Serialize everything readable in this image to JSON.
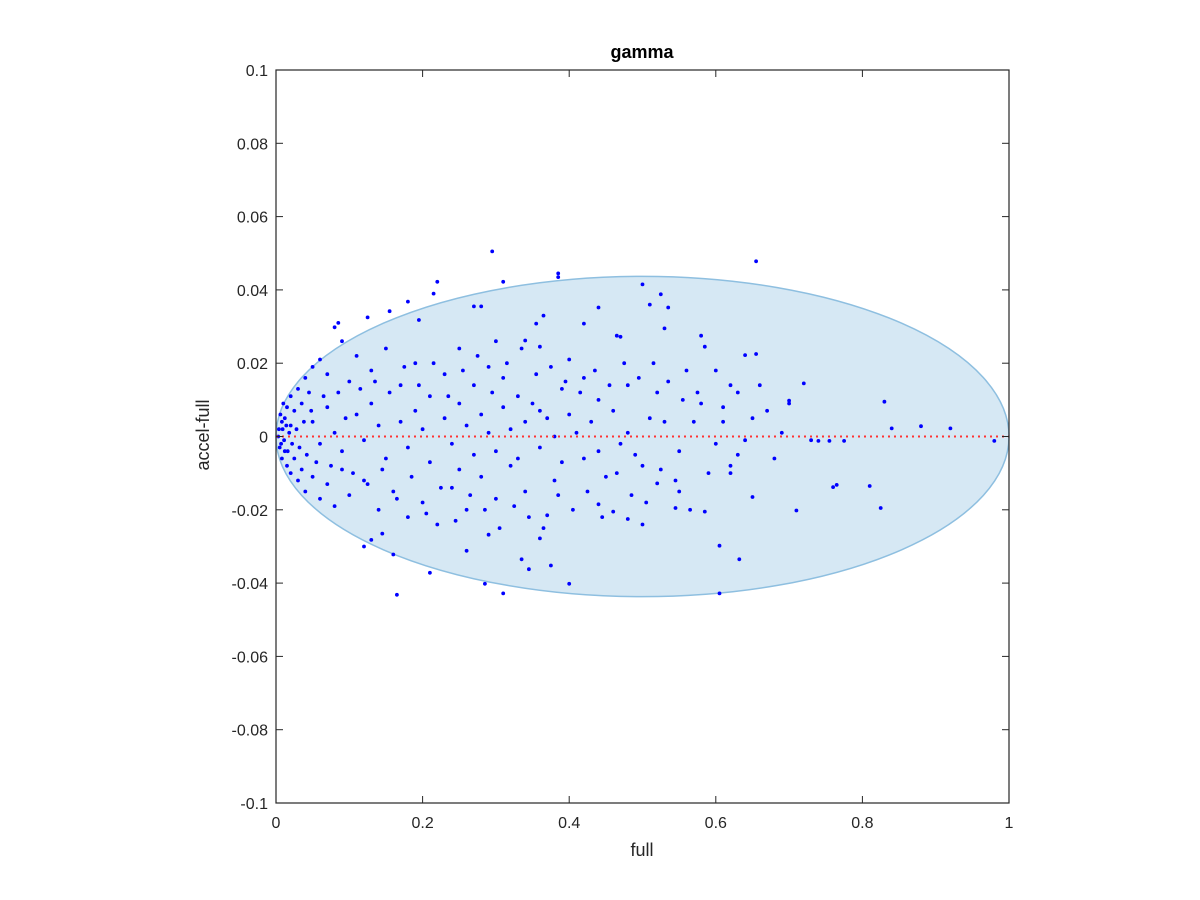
{
  "chart_data": {
    "type": "scatter",
    "title": "gamma",
    "xlabel": "full",
    "ylabel": "accel-full",
    "xlim": [
      0,
      1
    ],
    "ylim": [
      -0.1,
      0.1
    ],
    "xticks": [
      0,
      0.2,
      0.4,
      0.6,
      0.8,
      1
    ],
    "xtick_labels": [
      "0",
      "0.2",
      "0.4",
      "0.6",
      "0.8",
      "1"
    ],
    "yticks": [
      -0.1,
      -0.08,
      -0.06,
      -0.04,
      -0.02,
      0,
      0.02,
      0.04,
      0.06,
      0.08,
      0.1
    ],
    "ytick_labels": [
      "-0.1",
      "-0.08",
      "-0.06",
      "-0.04",
      "-0.02",
      "0",
      "0.02",
      "0.04",
      "0.06",
      "0.08",
      "0.1"
    ],
    "grid": false,
    "colors": {
      "points": "#0000ff",
      "ellipse_fill": "#d6e8f4",
      "ellipse_stroke": "#8ebfe0",
      "zero_line": "#ff3333",
      "axis": "#262626"
    },
    "ellipse": {
      "cx": 0.5,
      "cy": 0.0,
      "rx": 0.5,
      "ry": 0.0437
    },
    "reference_line": {
      "y": 0,
      "x": [
        0,
        1
      ],
      "style": "dotted"
    },
    "points": [
      [
        0.295,
        0.0505
      ],
      [
        0.655,
        0.0478
      ],
      [
        0.385,
        0.0445
      ],
      [
        0.385,
        0.0435
      ],
      [
        0.31,
        0.0422
      ],
      [
        0.22,
        0.0422
      ],
      [
        0.5,
        0.0415
      ],
      [
        0.215,
        0.039
      ],
      [
        0.525,
        0.0388
      ],
      [
        0.535,
        0.0352
      ],
      [
        0.18,
        0.0368
      ],
      [
        0.28,
        0.0355
      ],
      [
        0.27,
        0.0355
      ],
      [
        0.44,
        0.0352
      ],
      [
        0.51,
        0.036
      ],
      [
        0.085,
        0.031
      ],
      [
        0.08,
        0.0298
      ],
      [
        0.155,
        0.0342
      ],
      [
        0.195,
        0.0318
      ],
      [
        0.365,
        0.033
      ],
      [
        0.42,
        0.0308
      ],
      [
        0.355,
        0.0308
      ],
      [
        0.53,
        0.0295
      ],
      [
        0.125,
        0.0325
      ],
      [
        0.64,
        0.0222
      ],
      [
        0.655,
        0.0225
      ],
      [
        0.3,
        0.026
      ],
      [
        0.465,
        0.0275
      ],
      [
        0.47,
        0.0272
      ],
      [
        0.58,
        0.0275
      ],
      [
        0.36,
        0.0245
      ],
      [
        0.34,
        0.0262
      ],
      [
        0.25,
        0.024
      ],
      [
        0.585,
        0.0245
      ],
      [
        0.72,
        0.0145
      ],
      [
        0.7,
        0.0098
      ],
      [
        0.7,
        0.009
      ],
      [
        0.83,
        0.0095
      ],
      [
        0.84,
        0.0022
      ],
      [
        0.88,
        0.0028
      ],
      [
        0.92,
        0.0022
      ],
      [
        0.98,
        -0.0012
      ],
      [
        0.74,
        -0.0012
      ],
      [
        0.755,
        -0.0012
      ],
      [
        0.775,
        -0.0012
      ],
      [
        0.73,
        -0.001
      ],
      [
        0.765,
        -0.0132
      ],
      [
        0.76,
        -0.0138
      ],
      [
        0.81,
        -0.0135
      ],
      [
        0.825,
        -0.0195
      ],
      [
        0.71,
        -0.0202
      ],
      [
        0.65,
        -0.0165
      ],
      [
        0.62,
        -0.01
      ],
      [
        0.632,
        -0.0335
      ],
      [
        0.605,
        -0.0298
      ],
      [
        0.605,
        -0.0428
      ],
      [
        0.585,
        -0.0205
      ],
      [
        0.545,
        -0.0195
      ],
      [
        0.52,
        -0.0128
      ],
      [
        0.5,
        -0.024
      ],
      [
        0.48,
        -0.0225
      ],
      [
        0.44,
        -0.0185
      ],
      [
        0.4,
        -0.0402
      ],
      [
        0.375,
        -0.0352
      ],
      [
        0.345,
        -0.0362
      ],
      [
        0.31,
        -0.0428
      ],
      [
        0.285,
        -0.0402
      ],
      [
        0.26,
        -0.0312
      ],
      [
        0.21,
        -0.0372
      ],
      [
        0.165,
        -0.0432
      ],
      [
        0.16,
        -0.0322
      ],
      [
        0.13,
        -0.0282
      ],
      [
        0.12,
        -0.03
      ],
      [
        0.145,
        -0.0265
      ],
      [
        0.36,
        -0.0278
      ],
      [
        0.335,
        -0.0335
      ],
      [
        0.29,
        -0.0268
      ],
      [
        0.37,
        -0.0215
      ],
      [
        0.46,
        -0.0205
      ],
      [
        0.55,
        -0.015
      ],
      [
        0.62,
        -0.008
      ],
      [
        0.68,
        -0.006
      ],
      [
        0.6,
        -0.002
      ],
      [
        0.57,
        0.004
      ],
      [
        0.63,
        0.012
      ],
      [
        0.66,
        0.014
      ],
      [
        0.62,
        0.014
      ],
      [
        0.6,
        0.018
      ],
      [
        0.56,
        0.018
      ],
      [
        0.52,
        0.012
      ],
      [
        0.48,
        0.014
      ],
      [
        0.44,
        0.01
      ],
      [
        0.42,
        0.016
      ],
      [
        0.4,
        0.021
      ],
      [
        0.39,
        0.013
      ],
      [
        0.36,
        0.007
      ],
      [
        0.33,
        0.011
      ],
      [
        0.31,
        0.016
      ],
      [
        0.29,
        0.019
      ],
      [
        0.27,
        0.014
      ],
      [
        0.25,
        0.009
      ],
      [
        0.23,
        0.017
      ],
      [
        0.21,
        0.011
      ],
      [
        0.19,
        0.02
      ],
      [
        0.17,
        0.014
      ],
      [
        0.15,
        0.024
      ],
      [
        0.13,
        0.018
      ],
      [
        0.11,
        0.022
      ],
      [
        0.1,
        0.015
      ],
      [
        0.09,
        0.026
      ],
      [
        0.07,
        0.017
      ],
      [
        0.06,
        0.021
      ],
      [
        0.05,
        0.019
      ],
      [
        0.045,
        0.012
      ],
      [
        0.04,
        0.016
      ],
      [
        0.035,
        0.009
      ],
      [
        0.03,
        0.013
      ],
      [
        0.025,
        0.007
      ],
      [
        0.02,
        0.011
      ],
      [
        0.015,
        0.008
      ],
      [
        0.012,
        0.005
      ],
      [
        0.01,
        0.009
      ],
      [
        0.008,
        0.004
      ],
      [
        0.006,
        0.006
      ],
      [
        0.004,
        0.002
      ],
      [
        0.003,
        0.0
      ],
      [
        0.005,
        -0.003
      ],
      [
        0.008,
        -0.006
      ],
      [
        0.012,
        -0.004
      ],
      [
        0.015,
        -0.008
      ],
      [
        0.02,
        -0.01
      ],
      [
        0.025,
        -0.006
      ],
      [
        0.03,
        -0.012
      ],
      [
        0.035,
        -0.009
      ],
      [
        0.04,
        -0.015
      ],
      [
        0.05,
        -0.011
      ],
      [
        0.06,
        -0.017
      ],
      [
        0.07,
        -0.013
      ],
      [
        0.08,
        -0.019
      ],
      [
        0.09,
        -0.009
      ],
      [
        0.1,
        -0.016
      ],
      [
        0.12,
        -0.012
      ],
      [
        0.14,
        -0.02
      ],
      [
        0.16,
        -0.015
      ],
      [
        0.18,
        -0.022
      ],
      [
        0.2,
        -0.018
      ],
      [
        0.22,
        -0.024
      ],
      [
        0.24,
        -0.014
      ],
      [
        0.26,
        -0.02
      ],
      [
        0.28,
        -0.011
      ],
      [
        0.3,
        -0.017
      ],
      [
        0.32,
        -0.008
      ],
      [
        0.34,
        -0.015
      ],
      [
        0.38,
        -0.012
      ],
      [
        0.42,
        -0.006
      ],
      [
        0.45,
        -0.011
      ],
      [
        0.47,
        -0.002
      ],
      [
        0.5,
        -0.008
      ],
      [
        0.53,
        0.004
      ],
      [
        0.55,
        -0.004
      ],
      [
        0.58,
        0.009
      ],
      [
        0.61,
        0.004
      ],
      [
        0.64,
        -0.001
      ],
      [
        0.67,
        0.007
      ],
      [
        0.69,
        0.001
      ],
      [
        0.05,
        0.004
      ],
      [
        0.06,
        -0.002
      ],
      [
        0.07,
        0.008
      ],
      [
        0.08,
        0.001
      ],
      [
        0.09,
        -0.004
      ],
      [
        0.11,
        0.006
      ],
      [
        0.12,
        -0.001
      ],
      [
        0.13,
        0.009
      ],
      [
        0.14,
        0.003
      ],
      [
        0.15,
        -0.006
      ],
      [
        0.17,
        0.004
      ],
      [
        0.18,
        -0.003
      ],
      [
        0.19,
        0.007
      ],
      [
        0.2,
        0.002
      ],
      [
        0.21,
        -0.007
      ],
      [
        0.23,
        0.005
      ],
      [
        0.24,
        -0.002
      ],
      [
        0.25,
        -0.009
      ],
      [
        0.26,
        0.003
      ],
      [
        0.27,
        -0.005
      ],
      [
        0.28,
        0.006
      ],
      [
        0.29,
        0.001
      ],
      [
        0.3,
        -0.004
      ],
      [
        0.31,
        0.008
      ],
      [
        0.32,
        0.002
      ],
      [
        0.33,
        -0.006
      ],
      [
        0.34,
        0.004
      ],
      [
        0.35,
        0.009
      ],
      [
        0.36,
        -0.003
      ],
      [
        0.37,
        0.005
      ],
      [
        0.38,
        0.0
      ],
      [
        0.39,
        -0.007
      ],
      [
        0.4,
        0.006
      ],
      [
        0.41,
        0.001
      ],
      [
        0.43,
        0.004
      ],
      [
        0.44,
        -0.004
      ],
      [
        0.46,
        0.007
      ],
      [
        0.48,
        0.001
      ],
      [
        0.49,
        -0.005
      ],
      [
        0.51,
        0.005
      ],
      [
        0.02,
        0.003
      ],
      [
        0.022,
        -0.002
      ],
      [
        0.018,
        0.001
      ],
      [
        0.016,
        -0.004
      ],
      [
        0.014,
        0.003
      ],
      [
        0.011,
        -0.001
      ],
      [
        0.009,
        0.002
      ],
      [
        0.007,
        -0.002
      ],
      [
        0.028,
        0.002
      ],
      [
        0.032,
        -0.003
      ],
      [
        0.038,
        0.004
      ],
      [
        0.042,
        -0.005
      ],
      [
        0.048,
        0.007
      ],
      [
        0.055,
        -0.007
      ],
      [
        0.065,
        0.011
      ],
      [
        0.075,
        -0.008
      ],
      [
        0.085,
        0.012
      ],
      [
        0.095,
        0.005
      ],
      [
        0.105,
        -0.01
      ],
      [
        0.115,
        0.013
      ],
      [
        0.125,
        -0.013
      ],
      [
        0.135,
        0.015
      ],
      [
        0.145,
        -0.009
      ],
      [
        0.155,
        0.012
      ],
      [
        0.165,
        -0.017
      ],
      [
        0.175,
        0.019
      ],
      [
        0.185,
        -0.011
      ],
      [
        0.195,
        0.014
      ],
      [
        0.205,
        -0.021
      ],
      [
        0.215,
        0.02
      ],
      [
        0.225,
        -0.014
      ],
      [
        0.235,
        0.011
      ],
      [
        0.245,
        -0.023
      ],
      [
        0.255,
        0.018
      ],
      [
        0.265,
        -0.016
      ],
      [
        0.275,
        0.022
      ],
      [
        0.285,
        -0.02
      ],
      [
        0.295,
        0.012
      ],
      [
        0.305,
        -0.025
      ],
      [
        0.315,
        0.02
      ],
      [
        0.325,
        -0.019
      ],
      [
        0.335,
        0.024
      ],
      [
        0.345,
        -0.022
      ],
      [
        0.355,
        0.017
      ],
      [
        0.365,
        -0.025
      ],
      [
        0.375,
        0.019
      ],
      [
        0.385,
        -0.016
      ],
      [
        0.395,
        0.015
      ],
      [
        0.405,
        -0.02
      ],
      [
        0.415,
        0.012
      ],
      [
        0.425,
        -0.015
      ],
      [
        0.435,
        0.018
      ],
      [
        0.445,
        -0.022
      ],
      [
        0.455,
        0.014
      ],
      [
        0.465,
        -0.01
      ],
      [
        0.475,
        0.02
      ],
      [
        0.485,
        -0.016
      ],
      [
        0.495,
        0.016
      ],
      [
        0.505,
        -0.018
      ],
      [
        0.515,
        0.02
      ],
      [
        0.525,
        -0.009
      ],
      [
        0.535,
        0.015
      ],
      [
        0.545,
        -0.012
      ],
      [
        0.555,
        0.01
      ],
      [
        0.565,
        -0.02
      ],
      [
        0.575,
        0.012
      ],
      [
        0.59,
        -0.01
      ],
      [
        0.61,
        0.008
      ],
      [
        0.63,
        -0.005
      ],
      [
        0.65,
        0.005
      ]
    ]
  }
}
